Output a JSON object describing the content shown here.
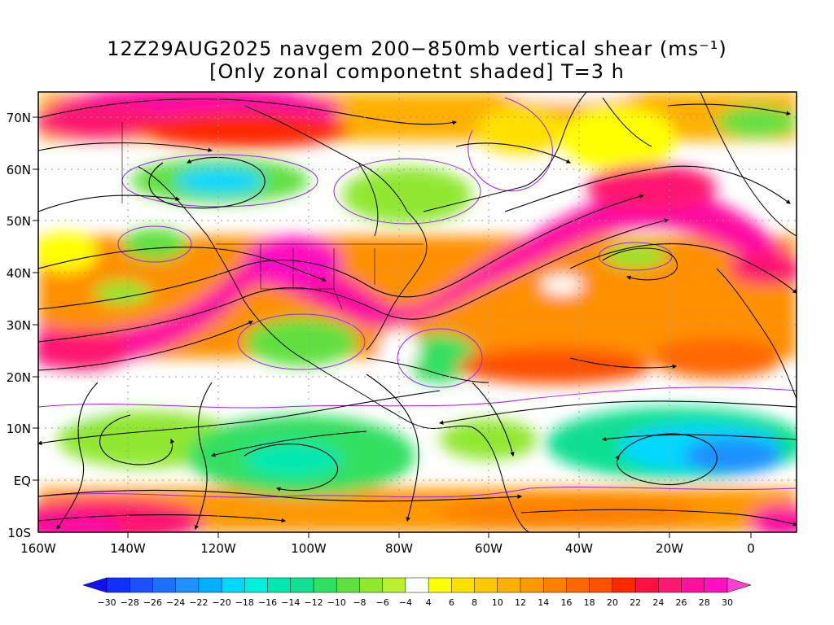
{
  "header": {
    "title_line1": "12Z29AUG2025 navgem 200−850mb vertical shear (ms⁻¹)",
    "title_line2": "[Only zonal componetnt shaded] T=3 h"
  },
  "map": {
    "lat_labels": [
      "70N",
      "60N",
      "50N",
      "40N",
      "30N",
      "20N",
      "10N",
      "EQ",
      "10S"
    ],
    "lon_labels": [
      "160W",
      "140W",
      "120W",
      "100W",
      "80W",
      "60W",
      "40W",
      "20W",
      "0"
    ],
    "shading_field": "zonal vertical shear",
    "streamline_color": "#000000",
    "contour_color": "#a020f0"
  },
  "colorbar": {
    "tick_labels": [
      "-30",
      "-28",
      "-26",
      "-24",
      "-22",
      "-20",
      "-18",
      "-16",
      "-14",
      "-12",
      "-10",
      "-8",
      "-6",
      "-4",
      "4",
      "6",
      "8",
      "10",
      "12",
      "14",
      "16",
      "18",
      "20",
      "22",
      "24",
      "26",
      "28",
      "30"
    ],
    "colors": [
      "#1030ff",
      "#1e50ff",
      "#1e70ff",
      "#1e90ff",
      "#00b0ff",
      "#00d8ff",
      "#00f0e0",
      "#00e8b0",
      "#10e090",
      "#30e060",
      "#60e040",
      "#90e830",
      "#b8f030",
      "#ffffff",
      "#ffff00",
      "#ffe000",
      "#ffc800",
      "#ffb000",
      "#ff9800",
      "#ff8000",
      "#ff6800",
      "#ff5000",
      "#ff2800",
      "#ff1040",
      "#ff1870",
      "#ff10a0",
      "#ff10c0"
    ],
    "end_low_color": "#1010ff",
    "end_high_color": "#ff40d0"
  }
}
